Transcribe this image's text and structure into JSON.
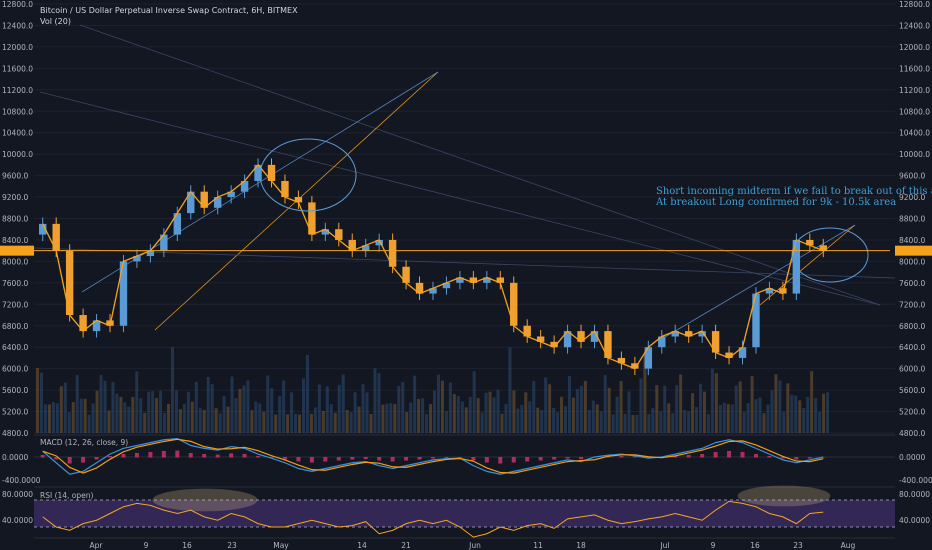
{
  "header": {
    "title": "Bitcoin / US Dollar Perpetual Inverse Swap Contract, 6H, BITMEX",
    "vol_label": "Vol (20)"
  },
  "panes": {
    "macd_label": "MACD (12, 26, close, 9)",
    "rsi_label": "RSI (14, open)"
  },
  "annotation": {
    "line1": "Short incoming midterm if we fail to break out of this area",
    "line2": "At breakout Long confirmed for 9k - 10.5k area"
  },
  "colors": {
    "background": "#131722",
    "candle_up": "#5b9bd5",
    "candle_down": "#f0a030",
    "price_line": "#f7a21b",
    "macd_line": "#3b8fd9",
    "signal_line": "#f39c12",
    "histogram": "#d6336c",
    "rsi_line": "#f5a623",
    "rsi_band": "#3a2a5e"
  },
  "price_axis": {
    "ticks": [
      "12800.0",
      "12400.0",
      "12000.0",
      "11600.0",
      "11200.0",
      "10800.0",
      "10400.0",
      "10000.0",
      "9600.0",
      "9200.0",
      "8800.0",
      "8400.0",
      "8000.0",
      "7600.0",
      "7200.0",
      "6800.0",
      "6400.0",
      "6000.0",
      "5600.0",
      "5200.0",
      "4800.0"
    ],
    "current_price": "8200.0"
  },
  "macd_axis": {
    "ticks": [
      "0.0000",
      "-400.0000"
    ]
  },
  "rsi_axis": {
    "ticks": [
      "80.0000",
      "40.0000"
    ]
  },
  "time_axis": {
    "ticks": [
      "Apr",
      "9",
      "16",
      "23",
      "May",
      "14",
      "21",
      "Jun",
      "11",
      "18",
      "Jul",
      "9",
      "16",
      "23",
      "Aug"
    ]
  },
  "chart_data": {
    "type": "candlestick",
    "title": "Bitcoin / US Dollar Perpetual Inverse Swap Contract, 6H, BITMEX",
    "ylim": [
      4800,
      12800
    ],
    "x": [
      "Apr 1",
      "Apr 3",
      "Apr 5",
      "Apr 7",
      "Apr 9",
      "Apr 11",
      "Apr 13",
      "Apr 15",
      "Apr 17",
      "Apr 19",
      "Apr 21",
      "Apr 23",
      "Apr 25",
      "Apr 27",
      "Apr 29",
      "May 1",
      "May 3",
      "May 5",
      "May 7",
      "May 9",
      "May 11",
      "May 13",
      "May 15",
      "May 17",
      "May 19",
      "May 21",
      "May 23",
      "May 25",
      "May 27",
      "May 29",
      "May 31",
      "Jun 2",
      "Jun 4",
      "Jun 6",
      "Jun 8",
      "Jun 10",
      "Jun 12",
      "Jun 14",
      "Jun 16",
      "Jun 18",
      "Jun 20",
      "Jun 22",
      "Jun 24",
      "Jun 26",
      "Jun 28",
      "Jun 30",
      "Jul 2",
      "Jul 4",
      "Jul 6",
      "Jul 8",
      "Jul 10",
      "Jul 12",
      "Jul 14",
      "Jul 16",
      "Jul 18",
      "Jul 20",
      "Jul 22",
      "Jul 24",
      "Jul 26"
    ],
    "close": [
      8700,
      8200,
      7000,
      6700,
      6900,
      6800,
      8000,
      8100,
      8200,
      8500,
      8900,
      9300,
      9000,
      9200,
      9300,
      9500,
      9800,
      9500,
      9200,
      9100,
      8500,
      8600,
      8400,
      8200,
      8300,
      8400,
      7900,
      7600,
      7400,
      7500,
      7600,
      7700,
      7600,
      7700,
      7600,
      6800,
      6600,
      6500,
      6400,
      6700,
      6500,
      6700,
      6200,
      6100,
      6000,
      6400,
      6600,
      6700,
      6600,
      6700,
      6300,
      6200,
      6400,
      7400,
      7500,
      7400,
      8400,
      8300,
      8200
    ],
    "series": [
      {
        "name": "MACD",
        "values": [
          100,
          -100,
          -300,
          -250,
          -100,
          50,
          150,
          200,
          250,
          300,
          320,
          200,
          150,
          120,
          180,
          150,
          50,
          -20,
          -100,
          -200,
          -250,
          -200,
          -150,
          -100,
          -80,
          -150,
          -200,
          -150,
          -100,
          -50,
          -30,
          -20,
          -150,
          -250,
          -300,
          -250,
          -200,
          -150,
          -100,
          -50,
          -80,
          0,
          30,
          50,
          20,
          -20,
          0,
          50,
          100,
          150,
          250,
          300,
          250,
          150,
          50,
          -50,
          -100,
          -50,
          0
        ]
      },
      {
        "name": "RSI",
        "values": [
          55,
          40,
          35,
          45,
          50,
          60,
          70,
          75,
          72,
          65,
          60,
          65,
          55,
          50,
          60,
          55,
          45,
          40,
          40,
          45,
          50,
          45,
          40,
          42,
          48,
          30,
          35,
          45,
          50,
          45,
          50,
          40,
          25,
          30,
          40,
          35,
          42,
          45,
          38,
          52,
          55,
          58,
          50,
          45,
          48,
          52,
          55,
          60,
          55,
          50,
          65,
          78,
          75,
          70,
          60,
          55,
          45,
          60,
          62
        ]
      }
    ],
    "annotations": [
      "Short incoming midterm if we fail to break out of this area",
      "At breakout Long confirmed for 9k - 10.5k area"
    ]
  }
}
